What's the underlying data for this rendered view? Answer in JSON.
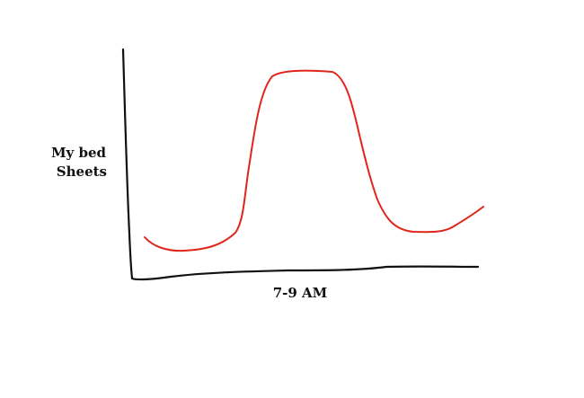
{
  "y_axis_label": [
    "My bed",
    "Sheets"
  ],
  "x_axis_label": "7-9 AM"
}
